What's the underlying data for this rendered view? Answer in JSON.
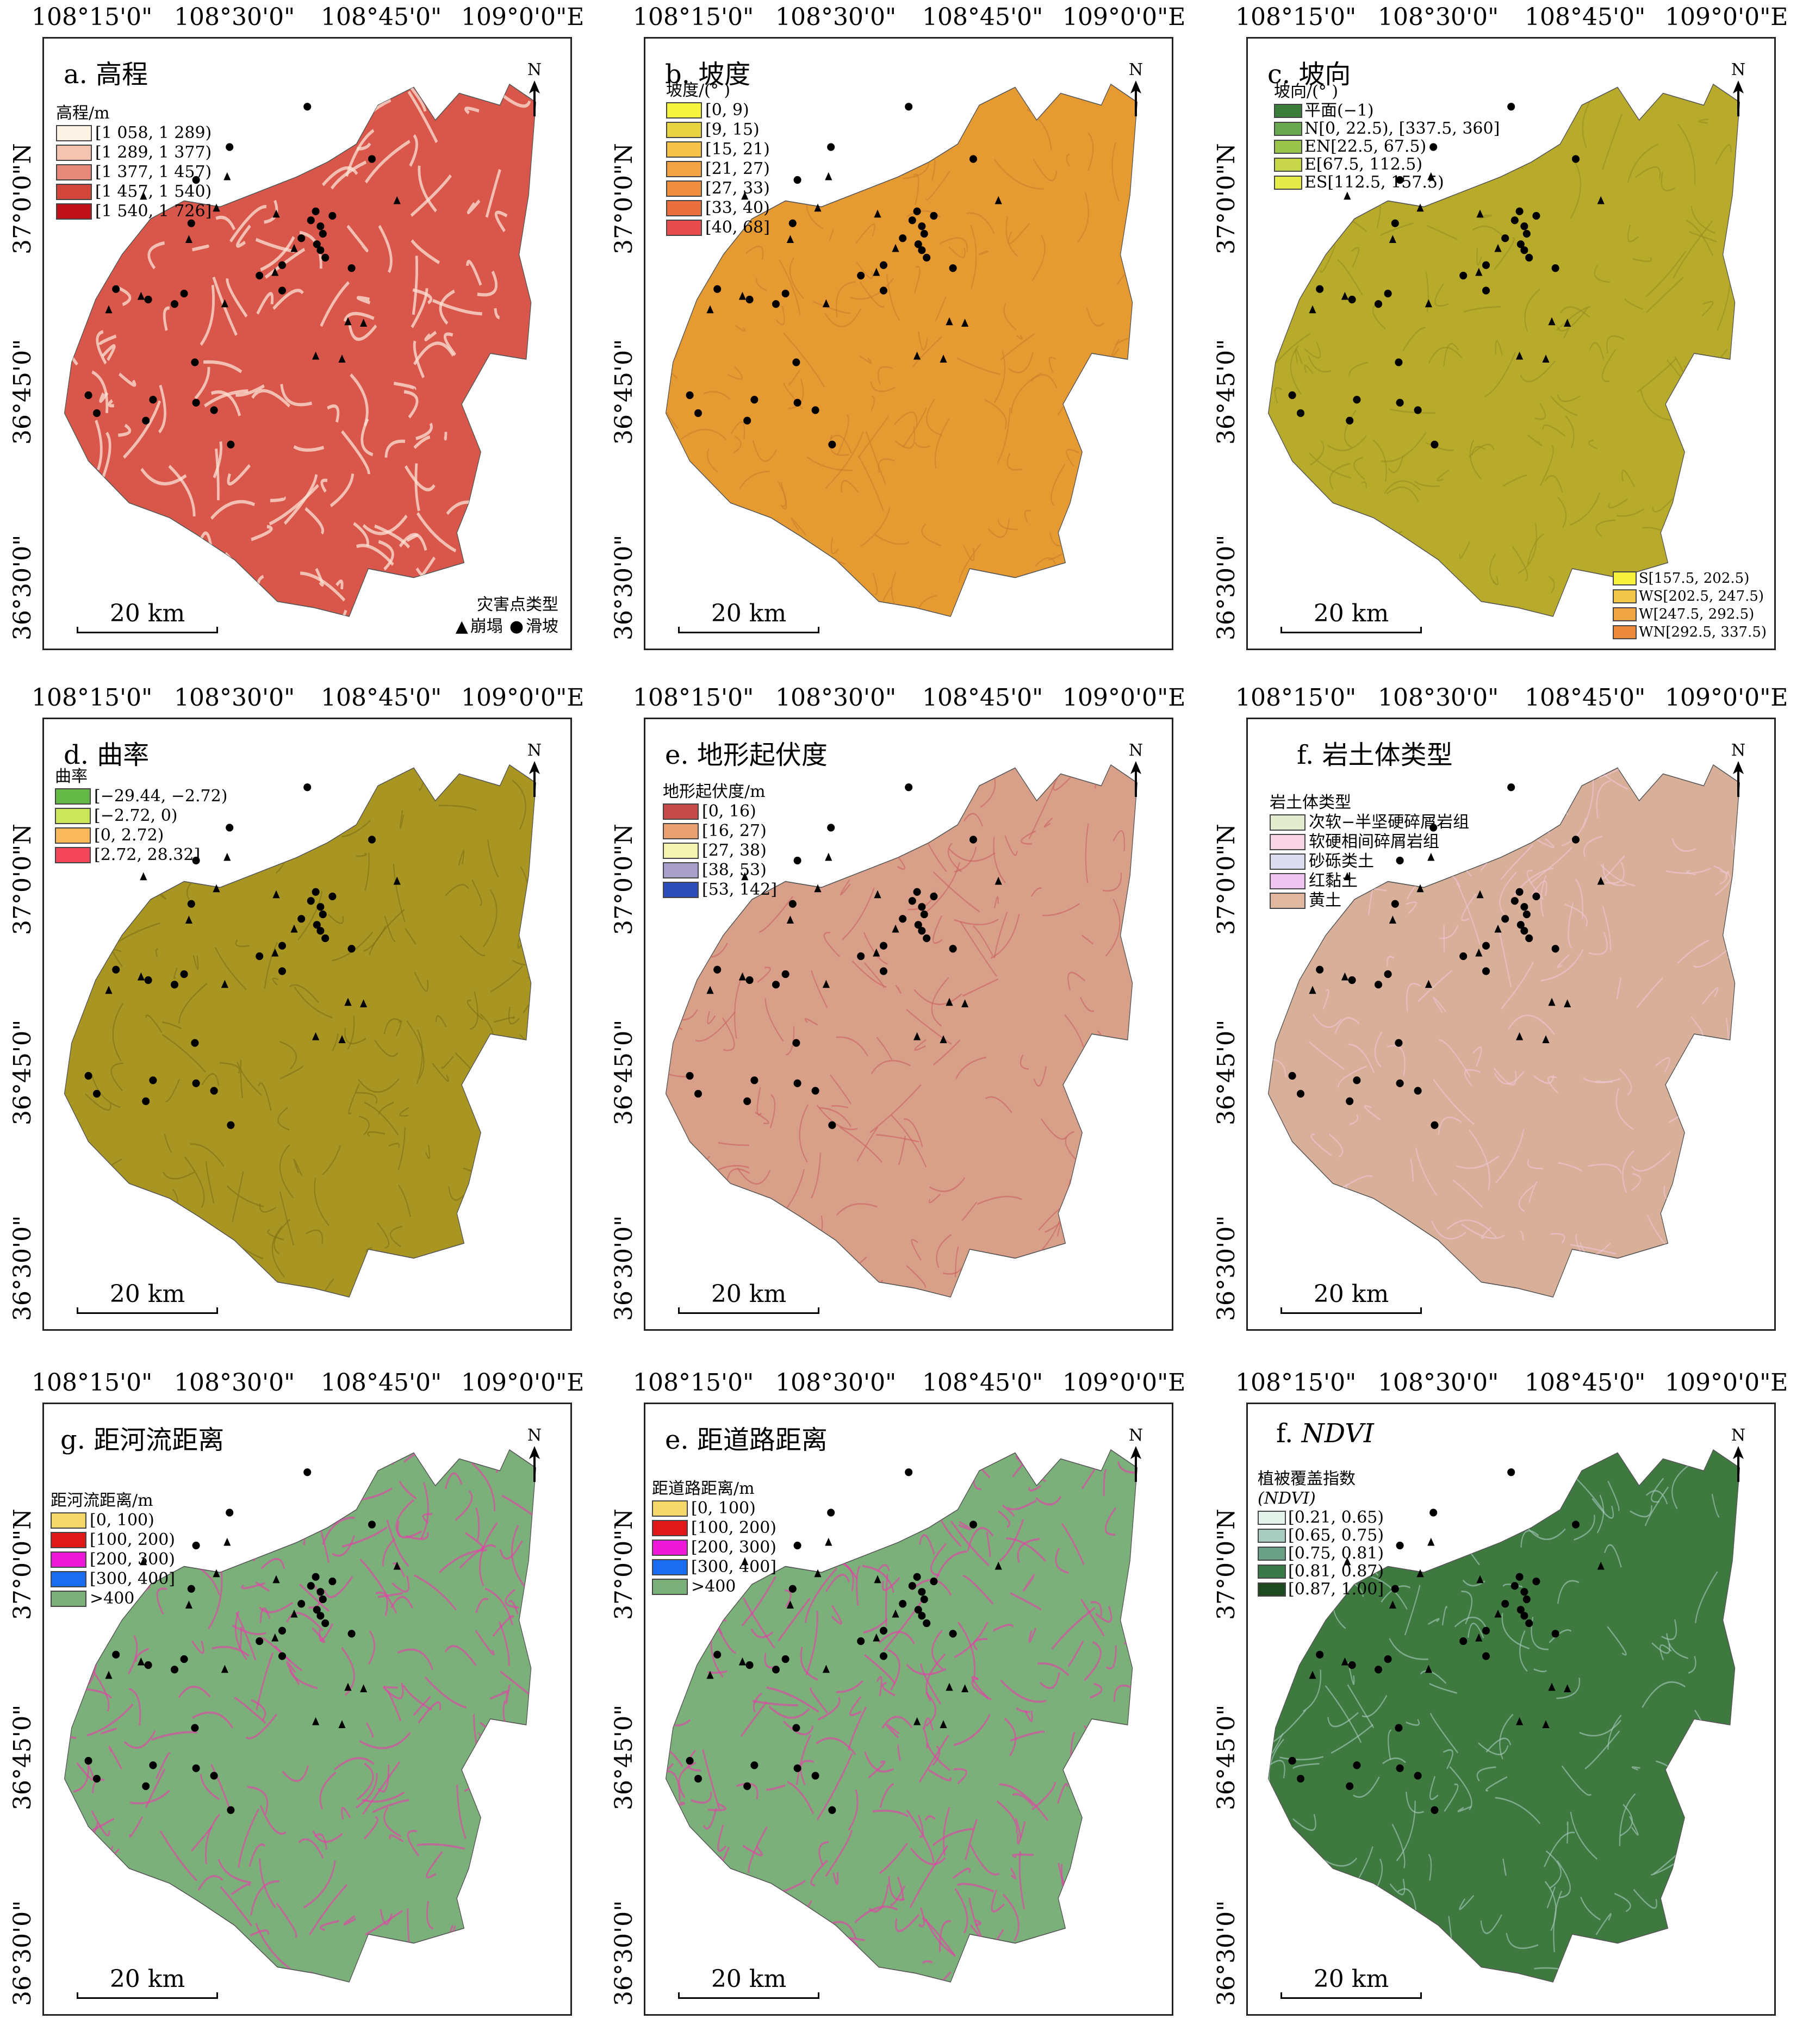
{
  "lon_labels": [
    "108°15'0\"",
    "108°30'0\"",
    "108°45'0\"",
    "109°0'0\"E"
  ],
  "lat_labels": [
    "37°0'0\"N",
    "36°45'0\"",
    "36°30'0\""
  ],
  "north_letter": "N",
  "scale_label": "20 km",
  "hazard_legend": {
    "title": "灾害点类型",
    "collapse_symbol": "▲",
    "collapse_label": "崩塌",
    "landslide_symbol": "●",
    "landslide_label": "滑坡"
  },
  "panels": {
    "a": {
      "title": "a. 高程",
      "legend_title": "高程/m",
      "legend": [
        {
          "label": "[1 058, 1 289)",
          "color": "#fdf2e6"
        },
        {
          "label": "[1 289, 1 377)",
          "color": "#f5c4b0"
        },
        {
          "label": "[1 377, 1 457)",
          "color": "#e58a7a"
        },
        {
          "label": "[1 457, 1 540)",
          "color": "#d2463c"
        },
        {
          "label": "[1 540, 1 726]",
          "color": "#c0101a"
        }
      ],
      "map_color": "#d8564a",
      "texture_color": "#fbe3d5"
    },
    "b": {
      "title": "b. 坡度",
      "legend_title": "坡度/(° )",
      "legend": [
        {
          "label": "[0, 9)",
          "color": "#f4f43c"
        },
        {
          "label": "[9, 15)",
          "color": "#e8d440"
        },
        {
          "label": "[15, 21)",
          "color": "#f5c248"
        },
        {
          "label": "[21, 27)",
          "color": "#f2a444"
        },
        {
          "label": "[27, 33)",
          "color": "#ef8e3e"
        },
        {
          "label": "[33, 40)",
          "color": "#ea6e3e"
        },
        {
          "label": "[40, 68]",
          "color": "#e84c4c"
        }
      ],
      "map_color": "#e69a32",
      "texture_color": "#c9802a"
    },
    "c": {
      "title": "c. 坡向",
      "legend_title": "坡向/(° )",
      "legend": [
        {
          "label": "平面(−1)",
          "color": "#3b7d3a"
        },
        {
          "label": "N[0, 22.5), [337.5, 360]",
          "color": "#6aa84f"
        },
        {
          "label": "EN[22.5, 67.5)",
          "color": "#9bc54a"
        },
        {
          "label": "E[67.5, 112.5)",
          "color": "#c6d84a"
        },
        {
          "label": "ES[112.5, 157.5)",
          "color": "#e4ec4a"
        }
      ],
      "legend_br": [
        {
          "label": "S[157.5, 202.5)",
          "color": "#f4f03c"
        },
        {
          "label": "WS[202.5, 247.5)",
          "color": "#f2c84a"
        },
        {
          "label": "W[247.5, 292.5)",
          "color": "#f0a444"
        },
        {
          "label": "WN[292.5, 337.5)",
          "color": "#ec8a3c"
        }
      ],
      "map_color": "#b8aa2a",
      "texture_color": "#9a8e22"
    },
    "d": {
      "title": "d. 曲率",
      "legend_title": "曲率",
      "legend": [
        {
          "label": "[−29.44, −2.72)",
          "color": "#63b846"
        },
        {
          "label": "[−2.72, 0)",
          "color": "#cce65a"
        },
        {
          "label": "[0, 2.72)",
          "color": "#f9b85a"
        },
        {
          "label": "[2.72, 28.32]",
          "color": "#f4485a"
        }
      ],
      "map_color": "#a89522",
      "texture_color": "#7e7214"
    },
    "e1": {
      "title": "e. 地形起伏度",
      "legend_title": "地形起伏度/m",
      "legend": [
        {
          "label": "[0, 16)",
          "color": "#c64a4a"
        },
        {
          "label": "[16, 27)",
          "color": "#e8a070"
        },
        {
          "label": "[27, 38)",
          "color": "#f4f4b0"
        },
        {
          "label": "[38, 53)",
          "color": "#a8a0c8"
        },
        {
          "label": "[53, 142]",
          "color": "#2c4cb8"
        }
      ],
      "map_color": "#d8a088",
      "texture_color": "#cc6060"
    },
    "f1": {
      "title": "f. 岩土体类型",
      "legend_title": "岩土体类型",
      "legend": [
        {
          "label": "次软−半坚硬碎屑岩组",
          "color": "#e4ecd0"
        },
        {
          "label": "软硬相间碎屑岩组",
          "color": "#f8d4e4"
        },
        {
          "label": "砂砾类土",
          "color": "#dcdcf0"
        },
        {
          "label": "红黏土",
          "color": "#f0c4f0"
        },
        {
          "label": "黄土",
          "color": "#e0b8a0"
        }
      ],
      "map_color": "#d8b09a",
      "texture_color": "#eec6d6"
    },
    "g": {
      "title": "g. 距河流距离",
      "legend_title": "距河流距离/m",
      "legend": [
        {
          "label": "[0, 100)",
          "color": "#f4d86a"
        },
        {
          "label": "[100, 200)",
          "color": "#e01818"
        },
        {
          "label": "[200, 300)",
          "color": "#ee18d8"
        },
        {
          "label": "[300, 400]",
          "color": "#1a6cf0"
        },
        {
          "label": ">400",
          "color": "#7bb07a"
        }
      ],
      "map_color": "#7bb07a",
      "texture_color": "#e83ca8"
    },
    "e2": {
      "title": "e. 距道路距离",
      "legend_title": "距道路距离/m",
      "legend": [
        {
          "label": "[0, 100)",
          "color": "#f4d86a"
        },
        {
          "label": "[100, 200)",
          "color": "#e01818"
        },
        {
          "label": "[200, 300)",
          "color": "#ee18d8"
        },
        {
          "label": "[300, 400]",
          "color": "#1a6cf0"
        },
        {
          "label": ">400",
          "color": "#7bb07a"
        }
      ],
      "map_color": "#7bb07a",
      "texture_color": "#e83ca8"
    },
    "f2": {
      "title_prefix": "f. ",
      "title_italic": "NDVI",
      "legend_title": "植被覆盖指数",
      "legend_subtitle": "(NDVI)",
      "legend": [
        {
          "label": "[0.21, 0.65)",
          "color": "#e4f2ec"
        },
        {
          "label": "[0.65, 0.75)",
          "color": "#a8ccc0"
        },
        {
          "label": "[0.75, 0.81)",
          "color": "#6aa088"
        },
        {
          "label": "[0.81, 0.87)",
          "color": "#3a7a48"
        },
        {
          "label": "[0.87, 1.00]",
          "color": "#1e4a22"
        }
      ],
      "map_color": "#3e7a40",
      "texture_color": "#a8ccc0"
    }
  }
}
